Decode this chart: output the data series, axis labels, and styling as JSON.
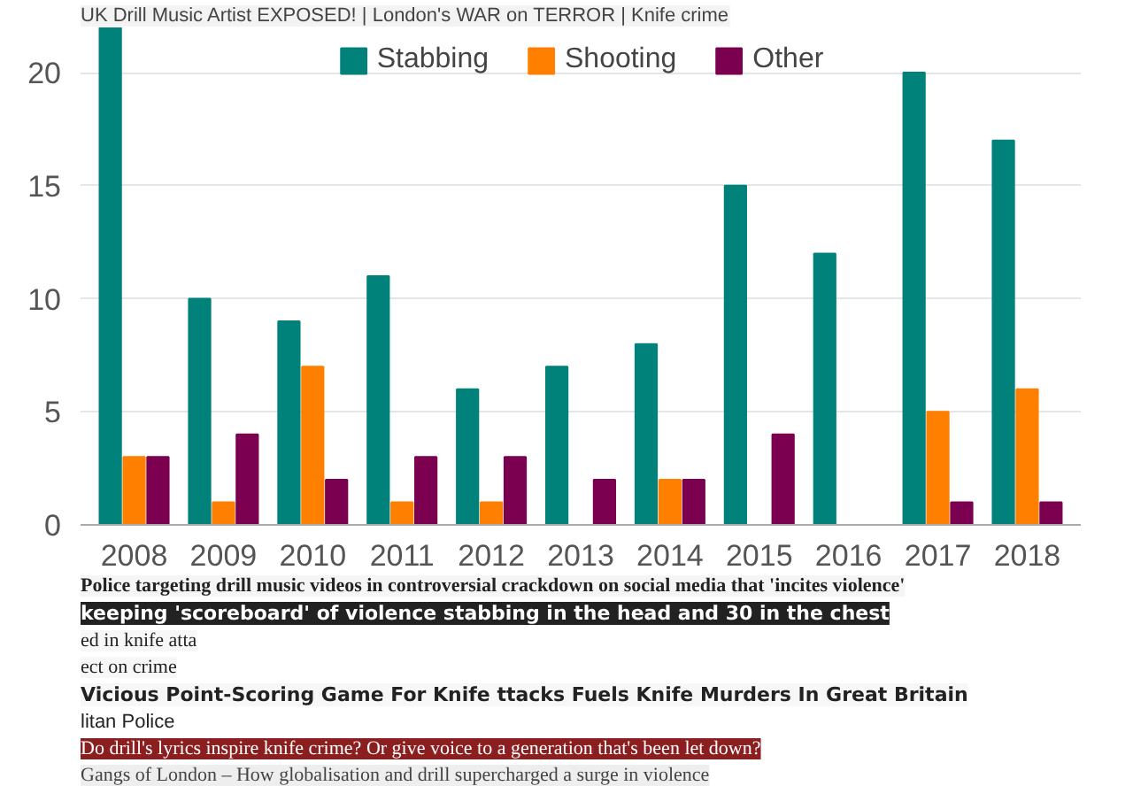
{
  "chart_data": {
    "type": "bar",
    "categories": [
      "2008",
      "2009",
      "2010",
      "2011",
      "2012",
      "2013",
      "2014",
      "2015",
      "2016",
      "2017",
      "2018"
    ],
    "series": [
      {
        "name": "Stabbing",
        "color": "#00827b",
        "values": [
          22,
          10,
          9,
          11,
          6,
          7,
          8,
          15,
          12,
          20,
          17
        ]
      },
      {
        "name": "Shooting",
        "color": "#ff7f00",
        "values": [
          3,
          1,
          7,
          1,
          1,
          0,
          2,
          0,
          0,
          5,
          6
        ]
      },
      {
        "name": "Other",
        "color": "#7b004f",
        "values": [
          3,
          4,
          2,
          3,
          3,
          2,
          2,
          4,
          0,
          1,
          1
        ]
      }
    ],
    "ylim": [
      0,
      22
    ],
    "yticks": [
      0,
      5,
      10,
      15,
      20
    ],
    "grid": "y",
    "legend": "top",
    "annotations": [
      "UK Drill Music Artist EXPOSED! | London's WAR on TERROR | Knife crime",
      "Police targeting drill music videos in controversial crackdown on social media that 'incites violence'",
      "keeping 'scoreboard' of violence stabbing in the head and 30 in the chest",
      "ed in knife atta",
      "ect on crime",
      "Vicious Point-Scoring Game For Knife ttacks Fuels Knife Murders In Great Britain",
      "litan Police",
      "Do drill's lyrics inspire knife crime? Or give voice to a generation that's been let down?",
      "Gangs of London – How globalisation and drill supercharged a surge in violence"
    ]
  }
}
